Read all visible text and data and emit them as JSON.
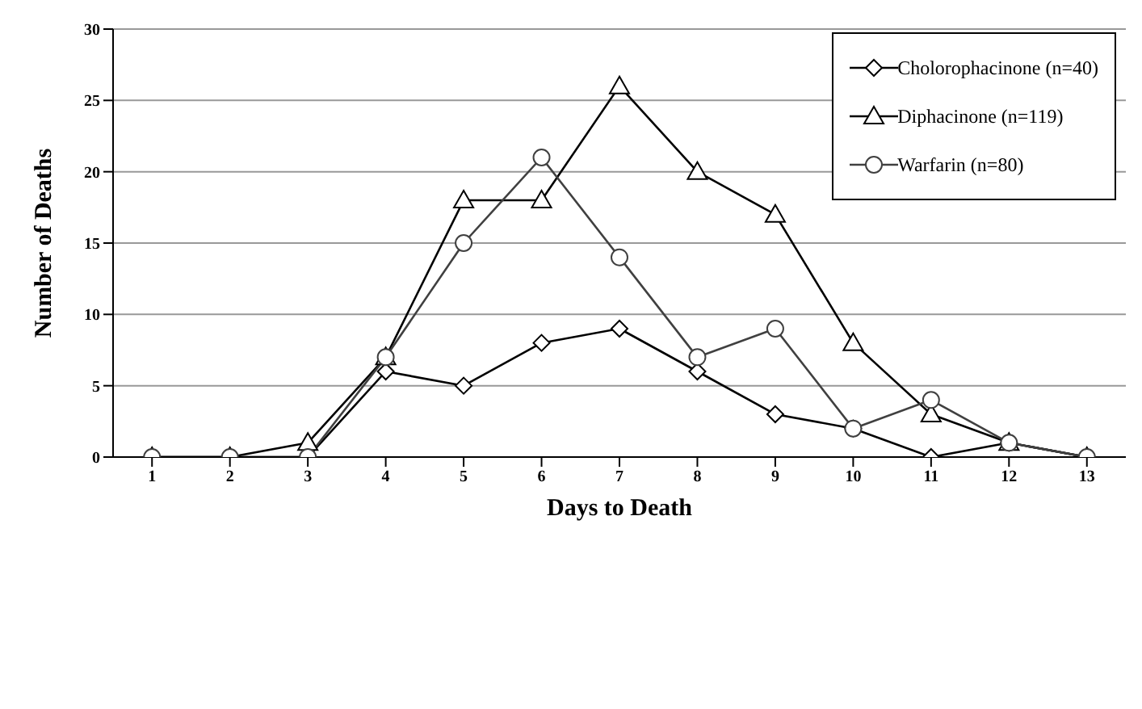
{
  "chart_data": {
    "type": "line",
    "xlabel": "Days to Death",
    "ylabel": "Number of Deaths",
    "x": [
      1,
      2,
      3,
      4,
      5,
      6,
      7,
      8,
      9,
      10,
      11,
      12,
      13
    ],
    "xlim": [
      0.5,
      13.5
    ],
    "xticks": [
      1,
      2,
      3,
      4,
      5,
      6,
      7,
      8,
      9,
      10,
      11,
      12,
      13
    ],
    "series": [
      {
        "name": "Cholorophacinone (n=40)",
        "color": "#000000",
        "marker": "diamond",
        "values": [
          0,
          0,
          0,
          6,
          5,
          8,
          9,
          6,
          3,
          2,
          0,
          1,
          0
        ]
      },
      {
        "name": "Diphacinone (n=119)",
        "color": "#000000",
        "marker": "triangle",
        "values": [
          0,
          0,
          1,
          7,
          18,
          18,
          26,
          20,
          17,
          8,
          3,
          1,
          0
        ]
      },
      {
        "name": "Warfarin (n=80)",
        "color": "#404040",
        "marker": "circle",
        "values": [
          0,
          0,
          0,
          7,
          15,
          21,
          14,
          7,
          9,
          2,
          4,
          1,
          0
        ]
      }
    ],
    "ylim": [
      0,
      30
    ],
    "yticks": [
      0,
      5,
      10,
      15,
      20,
      25,
      30
    ],
    "grid": "y",
    "legend": "top right",
    "line_style": "solid"
  }
}
